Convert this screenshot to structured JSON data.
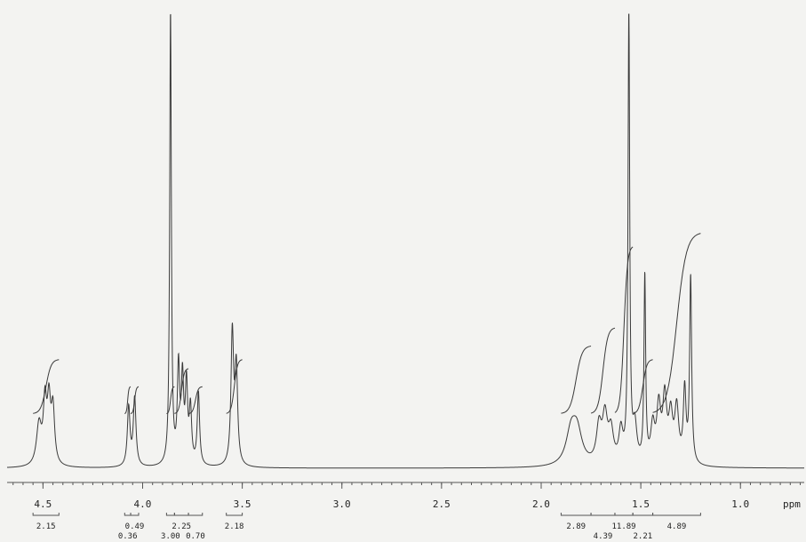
{
  "chart_data": {
    "type": "line",
    "title": "",
    "xlabel": "ppm",
    "ylabel": "",
    "x_reversed": true,
    "xlim": [
      4.68,
      0.68
    ],
    "ylim": [
      0,
      100
    ],
    "grid": false,
    "colors": {
      "trace": "#3a3a3a",
      "axis": "#555555",
      "background": "#f3f3f1"
    },
    "ticks": [
      {
        "x": 4.5,
        "label": "4.5"
      },
      {
        "x": 4.0,
        "label": "4.0"
      },
      {
        "x": 3.5,
        "label": "3.5"
      },
      {
        "x": 3.0,
        "label": "3.0"
      },
      {
        "x": 2.5,
        "label": "2.5"
      },
      {
        "x": 2.0,
        "label": "2.0"
      },
      {
        "x": 1.5,
        "label": "1.5"
      },
      {
        "x": 1.0,
        "label": "1.0"
      }
    ],
    "peaks": [
      {
        "ppm": 4.52,
        "height": 9,
        "width": 0.015
      },
      {
        "ppm": 4.49,
        "height": 13,
        "width": 0.01
      },
      {
        "ppm": 4.47,
        "height": 13,
        "width": 0.01
      },
      {
        "ppm": 4.45,
        "height": 12,
        "width": 0.01
      },
      {
        "ppm": 4.07,
        "height": 13,
        "width": 0.008
      },
      {
        "ppm": 4.04,
        "height": 15,
        "width": 0.008
      },
      {
        "ppm": 3.86,
        "height": 100,
        "width": 0.005
      },
      {
        "ppm": 3.82,
        "height": 21,
        "width": 0.007
      },
      {
        "ppm": 3.8,
        "height": 18,
        "width": 0.007
      },
      {
        "ppm": 3.78,
        "height": 17,
        "width": 0.007
      },
      {
        "ppm": 3.76,
        "height": 12,
        "width": 0.007
      },
      {
        "ppm": 3.72,
        "height": 16,
        "width": 0.007
      },
      {
        "ppm": 3.55,
        "height": 29,
        "width": 0.008
      },
      {
        "ppm": 3.53,
        "height": 21,
        "width": 0.008
      },
      {
        "ppm": 1.85,
        "height": 7,
        "width": 0.03
      },
      {
        "ppm": 1.82,
        "height": 7,
        "width": 0.03
      },
      {
        "ppm": 1.71,
        "height": 8,
        "width": 0.015
      },
      {
        "ppm": 1.68,
        "height": 10,
        "width": 0.015
      },
      {
        "ppm": 1.65,
        "height": 7,
        "width": 0.015
      },
      {
        "ppm": 1.6,
        "height": 7,
        "width": 0.012
      },
      {
        "ppm": 1.56,
        "height": 100,
        "width": 0.005
      },
      {
        "ppm": 1.53,
        "height": 8,
        "width": 0.012
      },
      {
        "ppm": 1.48,
        "height": 41,
        "width": 0.005
      },
      {
        "ppm": 1.44,
        "height": 8,
        "width": 0.012
      },
      {
        "ppm": 1.41,
        "height": 12,
        "width": 0.012
      },
      {
        "ppm": 1.38,
        "height": 14,
        "width": 0.012
      },
      {
        "ppm": 1.35,
        "height": 10,
        "width": 0.012
      },
      {
        "ppm": 1.32,
        "height": 12,
        "width": 0.012
      },
      {
        "ppm": 1.28,
        "height": 16,
        "width": 0.008
      },
      {
        "ppm": 1.25,
        "height": 41,
        "width": 0.006
      }
    ],
    "integrals": [
      {
        "from": 4.55,
        "to": 4.42,
        "rise": 12,
        "label": "2.15",
        "row": 1
      },
      {
        "from": 4.09,
        "to": 4.06,
        "rise": 6,
        "label": "0.36",
        "row": 2
      },
      {
        "from": 4.06,
        "to": 4.02,
        "rise": 6,
        "label": "0.49",
        "row": 1
      },
      {
        "from": 3.88,
        "to": 3.84,
        "rise": 6,
        "label": "3.00",
        "row": 2
      },
      {
        "from": 3.84,
        "to": 3.77,
        "rise": 10,
        "label": "2.25",
        "row": 1
      },
      {
        "from": 3.77,
        "to": 3.7,
        "rise": 6,
        "label": "0.70",
        "row": 2
      },
      {
        "from": 3.58,
        "to": 3.5,
        "rise": 12,
        "label": "2.18",
        "row": 1
      },
      {
        "from": 1.9,
        "to": 1.75,
        "rise": 15,
        "label": "2.89",
        "row": 1
      },
      {
        "from": 1.75,
        "to": 1.63,
        "rise": 19,
        "label": "4.39",
        "row": 2
      },
      {
        "from": 1.63,
        "to": 1.54,
        "rise": 37,
        "label": "11.89",
        "row": 1
      },
      {
        "from": 1.54,
        "to": 1.44,
        "rise": 12,
        "label": "2.21",
        "row": 2
      },
      {
        "from": 1.44,
        "to": 1.2,
        "rise": 40,
        "label": "4.89",
        "row": 1
      }
    ]
  }
}
